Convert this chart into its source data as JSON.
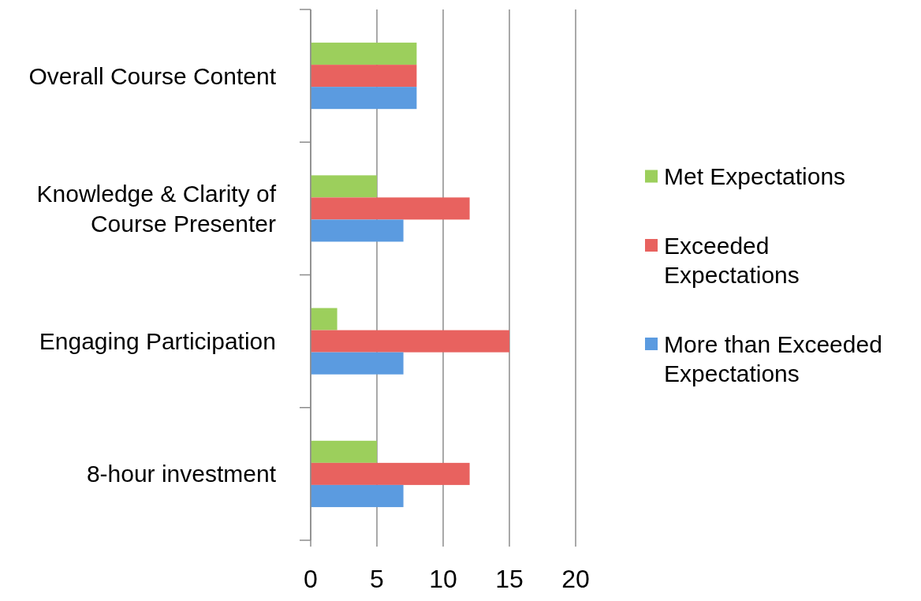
{
  "chart_data": {
    "type": "bar",
    "orientation": "horizontal",
    "categories": [
      "Overall Course Content",
      "Knowledge & Clarity of Course Presenter",
      "Engaging Participation",
      "8-hour investment"
    ],
    "series": [
      {
        "name": "Met Expectations",
        "color": "#9ccf5c",
        "values": [
          8,
          5,
          2,
          5
        ]
      },
      {
        "name": "Exceeded Expectations",
        "color": "#e8625f",
        "values": [
          8,
          12,
          15,
          12
        ]
      },
      {
        "name": "More than Exceeded Expectations",
        "color": "#5b9be0",
        "values": [
          8,
          7,
          7,
          7
        ]
      }
    ],
    "xlim": [
      0,
      20
    ],
    "xticks": [
      0,
      5,
      10,
      15,
      20
    ],
    "grid": "x",
    "legend": "right"
  }
}
